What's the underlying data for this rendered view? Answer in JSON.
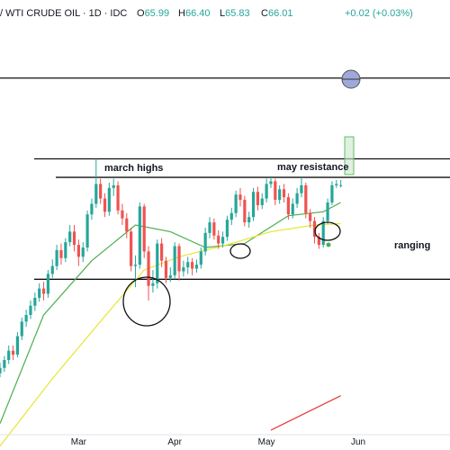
{
  "chart_data": {
    "type": "candlestick",
    "title": "/ WTI CRUDE OIL · 1D · IDC",
    "ohlc_labels": [
      "O65.99",
      "H66.40",
      "L65.83",
      "C66.01"
    ],
    "change": "+0.02 (+0.03%)",
    "x": [
      0,
      1,
      2,
      3,
      4,
      5,
      6,
      7,
      8,
      9,
      10,
      11,
      12,
      13,
      14,
      15,
      16,
      17,
      18,
      19,
      20,
      21,
      22,
      23,
      24,
      25,
      26,
      27,
      28,
      29,
      30,
      31,
      32,
      33,
      34,
      35,
      36,
      37,
      38,
      39,
      40,
      41,
      42,
      43,
      44,
      45,
      46,
      47,
      48,
      49,
      50,
      51,
      52,
      53,
      54,
      55,
      56,
      57,
      58,
      59,
      60,
      61,
      62,
      63,
      64,
      65,
      66,
      67,
      68,
      69,
      70,
      71,
      72,
      73,
      74,
      75,
      76,
      77,
      78
    ],
    "open": [
      51.8,
      52.2,
      52.8,
      53.5,
      53.2,
      54.6,
      55.7,
      56.2,
      56.9,
      57.5,
      58.2,
      57.8,
      59.3,
      59.9,
      61.1,
      60.5,
      61.7,
      62.5,
      61.5,
      60.6,
      61.3,
      63.8,
      64.6,
      66.1,
      65.0,
      64.0,
      65.8,
      66.0,
      64.1,
      63.5,
      62.5,
      59.9,
      60.0,
      64.4,
      61.0,
      58.4,
      58.6,
      61.6,
      60.3,
      59.0,
      59.2,
      61.4,
      59.5,
      59.8,
      60.2,
      59.7,
      60.0,
      61.0,
      62.4,
      63.2,
      62.2,
      61.6,
      62.1,
      63.4,
      63.9,
      65.3,
      64.9,
      63.2,
      63.6,
      65.5,
      64.5,
      65.0,
      66.1,
      66.3,
      64.9,
      65.7,
      65.1,
      63.8,
      64.6,
      65.4,
      66.0,
      63.9,
      63.3,
      62.1,
      61.5,
      63.3,
      64.7,
      66.0,
      65.99
    ],
    "high": [
      52.6,
      53.1,
      53.9,
      53.9,
      54.9,
      56.0,
      56.6,
      57.3,
      57.9,
      58.6,
      58.7,
      59.6,
      60.4,
      61.5,
      61.6,
      62.0,
      63.0,
      63.0,
      61.9,
      61.7,
      64.1,
      65.0,
      68.0,
      66.5,
      65.4,
      66.2,
      66.5,
      66.3,
      64.6,
      63.9,
      62.8,
      60.7,
      64.7,
      64.6,
      61.4,
      59.6,
      61.9,
      62.0,
      60.6,
      59.8,
      61.7,
      61.6,
      60.3,
      60.6,
      60.5,
      60.4,
      61.3,
      62.8,
      63.6,
      63.5,
      62.6,
      62.5,
      63.7,
      64.3,
      65.6,
      65.8,
      65.2,
      64.0,
      65.8,
      65.9,
      65.4,
      66.5,
      66.7,
      66.5,
      66.0,
      66.1,
      65.4,
      65.0,
      65.8,
      66.6,
      66.2,
      64.2,
      63.6,
      62.4,
      63.6,
      65.0,
      66.3,
      66.4,
      66.4
    ],
    "low": [
      51.5,
      51.9,
      52.5,
      52.8,
      53.0,
      54.3,
      55.3,
      55.9,
      56.5,
      57.2,
      57.3,
      57.5,
      59.0,
      59.6,
      60.0,
      60.2,
      61.4,
      61.0,
      59.9,
      60.2,
      61.0,
      63.4,
      64.3,
      64.6,
      63.6,
      63.7,
      65.2,
      63.8,
      63.0,
      62.0,
      59.5,
      58.3,
      59.7,
      60.5,
      57.3,
      57.9,
      58.2,
      59.8,
      58.6,
      58.7,
      58.9,
      58.8,
      59.1,
      59.3,
      59.2,
      59.4,
      59.7,
      60.7,
      62.0,
      61.9,
      61.2,
      61.3,
      61.8,
      63.0,
      63.6,
      64.4,
      62.9,
      62.8,
      63.3,
      64.1,
      64.2,
      64.7,
      65.8,
      64.5,
      64.6,
      64.7,
      63.4,
      63.5,
      64.3,
      65.1,
      63.5,
      62.8,
      61.6,
      61.2,
      61.3,
      63.1,
      64.5,
      65.8,
      65.83
    ],
    "close": [
      52.2,
      52.8,
      53.5,
      53.2,
      54.6,
      55.7,
      56.2,
      56.9,
      57.5,
      58.2,
      57.8,
      59.3,
      59.9,
      61.1,
      60.5,
      61.7,
      62.5,
      61.5,
      60.6,
      61.3,
      63.8,
      64.6,
      66.1,
      65.0,
      64.0,
      65.8,
      66.0,
      64.1,
      63.5,
      62.5,
      59.9,
      60.0,
      64.4,
      61.0,
      58.4,
      58.6,
      61.6,
      60.3,
      59.0,
      59.2,
      61.4,
      59.5,
      59.8,
      60.2,
      59.7,
      60.0,
      61.0,
      62.4,
      63.2,
      62.2,
      61.6,
      62.1,
      63.4,
      63.9,
      65.3,
      64.9,
      63.2,
      63.6,
      65.5,
      64.5,
      65.0,
      66.1,
      66.3,
      64.9,
      65.7,
      65.1,
      63.8,
      64.6,
      65.4,
      66.0,
      63.9,
      63.3,
      62.1,
      61.5,
      63.3,
      64.7,
      66.0,
      66.1,
      66.01
    ],
    "up_color": "#26a69a",
    "down_color": "#ef5350",
    "lines": [
      {
        "color": "#4caf50",
        "x": [
          0,
          10,
          21,
          31,
          39,
          47,
          56,
          66,
          74,
          78
        ],
        "values": [
          48.0,
          56.2,
          60.3,
          63.0,
          62.5,
          61.3,
          61.6,
          63.7,
          64.0,
          64.7
        ]
      },
      {
        "color": "#e6e632",
        "x": [
          0,
          12,
          25,
          33,
          41,
          52,
          62,
          72,
          78
        ],
        "values": [
          46.3,
          51.4,
          56.5,
          59.6,
          60.6,
          61.5,
          62.5,
          63.0,
          63.1
        ]
      },
      {
        "color": "#e53935",
        "x": [
          62,
          78
        ],
        "values": [
          47.5,
          50.1
        ]
      }
    ],
    "levels": [
      74.1,
      68.0,
      66.6,
      58.9
    ],
    "annotations": [
      "march highs",
      "may resistance",
      "ranging"
    ],
    "xlim": [
      0,
      103
    ],
    "ylim": [
      46,
      80
    ],
    "xticks": [
      {
        "value": 18,
        "label": "Mar"
      },
      {
        "value": 40,
        "label": "Apr"
      },
      {
        "value": 61,
        "label": "May"
      },
      {
        "value": 82,
        "label": "Jun"
      }
    ]
  }
}
